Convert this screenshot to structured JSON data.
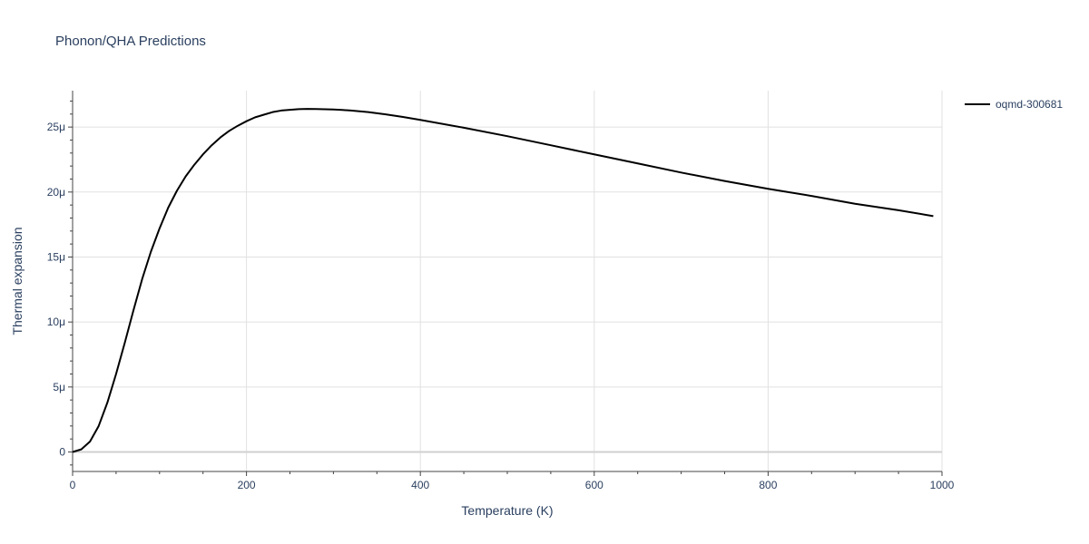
{
  "chart_data": {
    "type": "line",
    "title": "Phonon/QHA Predictions",
    "xlabel": "Temperature (K)",
    "ylabel": "Thermal expansion",
    "xlim": [
      0,
      1000
    ],
    "ylim": [
      -1.5e-06,
      2.78e-05
    ],
    "x_ticks": [
      0,
      200,
      400,
      600,
      800,
      1000
    ],
    "x_tick_labels": [
      "0",
      "200",
      "400",
      "600",
      "800",
      "1000"
    ],
    "y_ticks": [
      0,
      5e-06,
      1e-05,
      1.5e-05,
      2e-05,
      2.5e-05
    ],
    "y_tick_labels": [
      "0",
      "5μ",
      "10μ",
      "15μ",
      "20μ",
      "25μ"
    ],
    "grid": true,
    "legend_position": "top-right",
    "series": [
      {
        "name": "oqmd-300681",
        "color": "#000000",
        "x": [
          0,
          10,
          20,
          30,
          40,
          50,
          60,
          70,
          80,
          90,
          100,
          110,
          120,
          130,
          140,
          150,
          160,
          170,
          180,
          190,
          200,
          210,
          220,
          230,
          240,
          250,
          260,
          270,
          280,
          290,
          300,
          310,
          320,
          340,
          360,
          380,
          400,
          450,
          500,
          550,
          600,
          650,
          700,
          750,
          800,
          850,
          900,
          950,
          990
        ],
        "y": [
          0,
          2e-07,
          8e-07,
          2e-06,
          3.8e-06,
          6e-06,
          8.4e-06,
          1.09e-05,
          1.33e-05,
          1.54e-05,
          1.72e-05,
          1.88e-05,
          2.01e-05,
          2.12e-05,
          2.21e-05,
          2.29e-05,
          2.36e-05,
          2.42e-05,
          2.47e-05,
          2.51e-05,
          2.545e-05,
          2.575e-05,
          2.595e-05,
          2.615e-05,
          2.627e-05,
          2.633e-05,
          2.638e-05,
          2.64e-05,
          2.639e-05,
          2.637e-05,
          2.635e-05,
          2.632e-05,
          2.627e-05,
          2.615e-05,
          2.598e-05,
          2.578e-05,
          2.555e-05,
          2.495e-05,
          2.43e-05,
          2.36e-05,
          2.29e-05,
          2.22e-05,
          2.15e-05,
          2.085e-05,
          2.025e-05,
          1.97e-05,
          1.91e-05,
          1.86e-05,
          1.815e-05
        ]
      }
    ]
  }
}
